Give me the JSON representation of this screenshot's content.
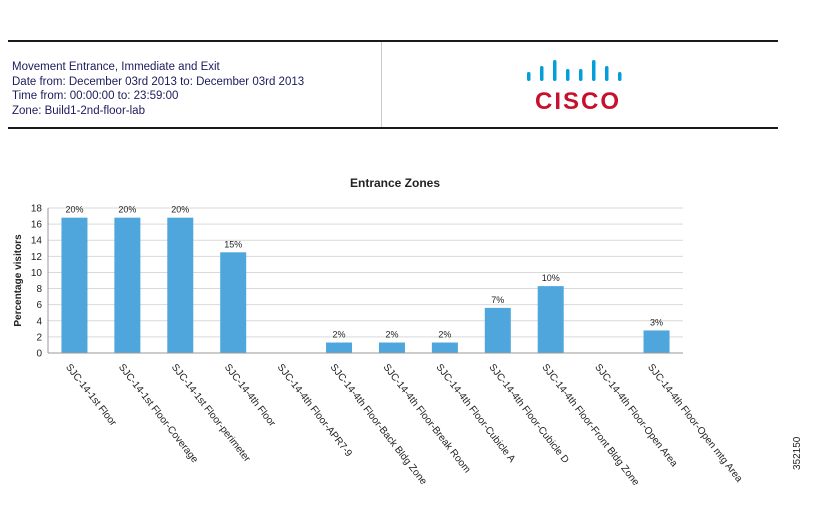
{
  "header": {
    "lines": [
      "Movement Entrance, Immediate and Exit",
      "Date from: December 03rd 2013 to: December 03rd 2013",
      "Time from: 00:00:00 to: 23:59:00",
      "Zone: Build1-2nd-floor-lab"
    ],
    "logo_text": "CISCO",
    "logo_icon": "cisco-bridge-logo-icon"
  },
  "figure_id": "352150",
  "colors": {
    "bar": "#4ea6dc",
    "logo_bars": "#049fd9",
    "logo_text": "#c8102e"
  },
  "chart_data": {
    "type": "bar",
    "title": "Entrance Zones",
    "ylabel": "Percentage visitors",
    "xlabel": "",
    "ylim": [
      0,
      18
    ],
    "yticks": [
      0,
      2,
      4,
      6,
      8,
      10,
      12,
      14,
      16,
      18
    ],
    "grid": true,
    "categories": [
      "SJC-14-1st Floor",
      "SJC-14-1st Floor-Coverage",
      "SJC-14-1st Floor-perimeter",
      "SJC-14-4th Floor",
      "SJC-14-4th Floor-APR7-9",
      "SJC-14-4th Floor-Back Bldg Zone",
      "SJC-14-4th Floor-Break Room",
      "SJC-14-4th Floor-Cubicle A",
      "SJC-14-4th Floor-Cubicle D",
      "SJC-14-4th Floor-Front Bldg Zone",
      "SJC-14-4th Floor-Open Area",
      "SJC-14-4th Floor-Open mtg Area"
    ],
    "values": [
      16.8,
      16.8,
      16.8,
      12.5,
      0,
      1.3,
      1.3,
      1.3,
      5.6,
      8.3,
      0,
      2.8
    ],
    "data_labels": [
      "20%",
      "20%",
      "20%",
      "15%",
      "",
      "2%",
      "2%",
      "2%",
      "7%",
      "10%",
      "",
      "3%"
    ]
  }
}
